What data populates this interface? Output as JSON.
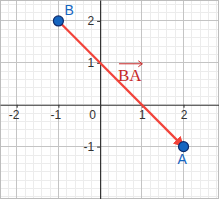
{
  "chart_data": {
    "type": "scatter",
    "x": [
      -1,
      2
    ],
    "point_labels": [
      "B",
      "A"
    ],
    "series": [
      {
        "type": "vector",
        "color": "#f2433a",
        "line_style": "solid",
        "values": [
          2,
          -1
        ]
      },
      {
        "type": "scatter",
        "color": "#1565c0",
        "marker": "circle",
        "values": [
          2,
          -1
        ]
      }
    ],
    "annotations": [
      {
        "text": "BA"
      }
    ],
    "xlim": [
      -2.4,
      2.85
    ],
    "ylim": [
      -2.25,
      2.5
    ],
    "xticks": [
      -2,
      -1,
      0,
      1,
      2
    ],
    "yticks": [
      -1,
      1,
      2
    ],
    "grid": true
  }
}
